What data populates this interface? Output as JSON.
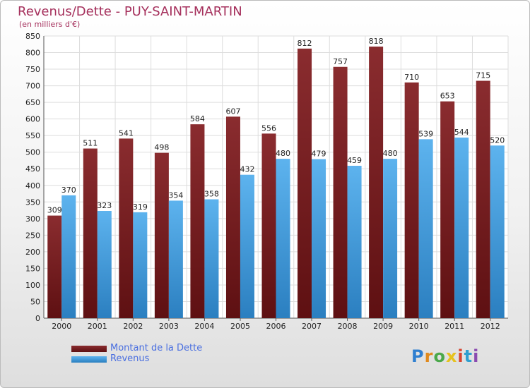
{
  "header": {
    "title": "Revenus/Dette - PUY-SAINT-MARTIN",
    "subtitle": "(en milliers d'€)"
  },
  "legend": [
    {
      "label": "Montant de la Dette",
      "color": "#7a1f22"
    },
    {
      "label": "Revenus",
      "color": "#4da6e6"
    }
  ],
  "logo": {
    "text": "Proxiti"
  },
  "chart_data": {
    "type": "bar",
    "title": "Revenus/Dette - PUY-SAINT-MARTIN",
    "ylabel": "(en milliers d'€)",
    "xlabel": "",
    "categories": [
      "2000",
      "2001",
      "2002",
      "2003",
      "2004",
      "2005",
      "2006",
      "2007",
      "2008",
      "2009",
      "2010",
      "2011",
      "2012"
    ],
    "series": [
      {
        "name": "Montant de la Dette",
        "color": "#7a1f22",
        "values": [
          309,
          511,
          541,
          498,
          584,
          607,
          556,
          812,
          757,
          818,
          710,
          653,
          715
        ]
      },
      {
        "name": "Revenus",
        "color": "#4da6e6",
        "values": [
          370,
          323,
          319,
          354,
          358,
          432,
          480,
          479,
          459,
          480,
          539,
          544,
          520
        ]
      }
    ],
    "ylim": [
      0,
      850
    ],
    "ytick_step": 50,
    "grid": true,
    "legend_position": "bottom-left"
  }
}
